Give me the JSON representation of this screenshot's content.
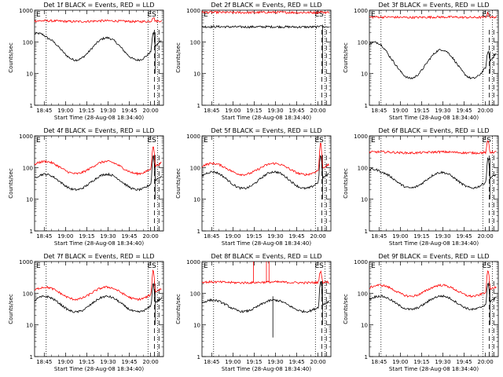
{
  "colors": {
    "events": "#000000",
    "lld": "#ff0000",
    "axis": "#000000",
    "background": "#ffffff"
  },
  "chart_data": [
    {
      "type": "line",
      "title": "Det 1f BLACK = Events, RED = LLD",
      "xlabel": "Start Time (28-Aug-08 18:34:40)",
      "ylabel": "Counts/sec",
      "ylog": true,
      "ylim": [
        1,
        1000
      ],
      "yticks": [
        "1",
        "10",
        "100",
        "1000"
      ],
      "xticks": [
        "18:45",
        "19:00",
        "19:15",
        "19:30",
        "19:45",
        "20:00"
      ],
      "annotations": [
        "E",
        "ES"
      ],
      "series": [
        {
          "name": "Events",
          "profile": "orbit_decreasing",
          "base_counts": 60,
          "amplitude": 1.0,
          "late_spike": 200
        },
        {
          "name": "LLD",
          "profile": "flat_high",
          "base_counts": 450,
          "amplitude": 0.15,
          "late_spike": 600
        }
      ]
    },
    {
      "type": "line",
      "title": "Det 2f BLACK = Events, RED = LLD",
      "xlabel": "Start Time (28-Aug-08 18:34:40)",
      "ylabel": "Counts/sec",
      "ylog": true,
      "ylim": [
        1,
        1000
      ],
      "yticks": [
        "1",
        "10",
        "100",
        "1000"
      ],
      "xticks": [
        "18:45",
        "19:00",
        "19:15",
        "19:30",
        "19:45",
        "20:00"
      ],
      "annotations": [
        "E",
        "ES"
      ],
      "series": [
        {
          "name": "Events",
          "profile": "flat_low",
          "base_counts": 300,
          "amplitude": 0.1,
          "late_spike": 350
        },
        {
          "name": "LLD",
          "profile": "flat_high",
          "base_counts": 850,
          "amplitude": 0.05,
          "late_spike": 900
        }
      ]
    },
    {
      "type": "line",
      "title": "Det 3f BLACK = Events, RED = LLD",
      "xlabel": "Start Time (28-Aug-08 18:34:40)",
      "ylabel": "Counts/sec",
      "ylog": true,
      "ylim": [
        1,
        1000
      ],
      "yticks": [
        "1",
        "10",
        "100",
        "1000"
      ],
      "xticks": [
        "18:45",
        "19:00",
        "19:15",
        "19:30",
        "19:45",
        "20:00"
      ],
      "annotations": [
        "E",
        "ES"
      ],
      "series": [
        {
          "name": "Events",
          "profile": "orbit_rising",
          "base_counts": 20,
          "amplitude": 1.0,
          "late_spike": 50
        },
        {
          "name": "LLD",
          "profile": "flat_high",
          "base_counts": 600,
          "amplitude": 0.08,
          "late_spike": 800
        }
      ]
    },
    {
      "type": "line",
      "title": "Det 4f BLACK = Events, RED = LLD",
      "xlabel": "Start Time (28-Aug-08 18:34:40)",
      "ylabel": "Counts/sec",
      "ylog": true,
      "ylim": [
        1,
        1000
      ],
      "yticks": [
        "1",
        "10",
        "100",
        "1000"
      ],
      "xticks": [
        "18:45",
        "19:00",
        "19:15",
        "19:30",
        "19:45",
        "20:00"
      ],
      "annotations": [
        "E",
        "ES"
      ],
      "series": [
        {
          "name": "Events",
          "profile": "orbit",
          "base_counts": 35,
          "amplitude": 0.7,
          "late_spike": 250
        },
        {
          "name": "LLD",
          "profile": "orbit",
          "base_counts": 100,
          "amplitude": 0.55,
          "late_spike": 500
        }
      ]
    },
    {
      "type": "line",
      "title": "Det 5f BLACK = Events, RED = LLD",
      "xlabel": "Start Time (28-Aug-08 18:34:40)",
      "ylabel": "Counts/sec",
      "ylog": true,
      "ylim": [
        1,
        1000
      ],
      "yticks": [
        "1",
        "10",
        "100",
        "1000"
      ],
      "xticks": [
        "18:45",
        "19:00",
        "19:15",
        "19:30",
        "19:45",
        "20:00"
      ],
      "annotations": [
        "E",
        "ES"
      ],
      "series": [
        {
          "name": "Events",
          "profile": "orbit",
          "base_counts": 40,
          "amplitude": 0.75,
          "late_spike": 250
        },
        {
          "name": "LLD",
          "profile": "orbit",
          "base_counts": 90,
          "amplitude": 0.5,
          "late_spike": 600
        }
      ]
    },
    {
      "type": "line",
      "title": "Det 6f BLACK = Events, RED = LLD",
      "xlabel": "Start Time (28-Aug-08 18:34:40)",
      "ylabel": "Counts/sec",
      "ylog": true,
      "ylim": [
        1,
        1000
      ],
      "yticks": [
        "1",
        "10",
        "100",
        "1000"
      ],
      "xticks": [
        "18:45",
        "19:00",
        "19:15",
        "19:30",
        "19:45",
        "20:00"
      ],
      "annotations": [
        "E",
        "ES"
      ],
      "series": [
        {
          "name": "Events",
          "profile": "orbit_decreasing",
          "base_counts": 40,
          "amplitude": 0.7,
          "late_spike": 200
        },
        {
          "name": "LLD",
          "profile": "flat_high",
          "base_counts": 300,
          "amplitude": 0.2,
          "late_spike": 700
        }
      ]
    },
    {
      "type": "line",
      "title": "Det 7f BLACK = Events, RED = LLD",
      "xlabel": "Start Time (28-Aug-08 18:34:40)",
      "ylabel": "Counts/sec",
      "ylog": true,
      "ylim": [
        1,
        1000
      ],
      "yticks": [
        "1",
        "10",
        "100",
        "1000"
      ],
      "xticks": [
        "18:45",
        "19:00",
        "19:15",
        "19:30",
        "19:45",
        "20:00"
      ],
      "annotations": [
        "E",
        "ES"
      ],
      "series": [
        {
          "name": "Events",
          "profile": "orbit",
          "base_counts": 45,
          "amplitude": 0.7,
          "late_spike": 200
        },
        {
          "name": "LLD",
          "profile": "orbit",
          "base_counts": 100,
          "amplitude": 0.55,
          "late_spike": 550
        }
      ]
    },
    {
      "type": "line",
      "title": "Det 8f BLACK = Events, RED = LLD",
      "xlabel": "Start Time (28-Aug-08 18:34:40)",
      "ylabel": "Counts/sec",
      "ylog": true,
      "ylim": [
        1,
        1000
      ],
      "yticks": [
        "1",
        "10",
        "100",
        "1000"
      ],
      "xticks": [
        "18:45",
        "19:00",
        "19:15",
        "19:30",
        "19:45",
        "20:00"
      ],
      "annotations": [
        "E",
        "ES"
      ],
      "series": [
        {
          "name": "Events",
          "profile": "orbit_gappy",
          "base_counts": 40,
          "amplitude": 0.6,
          "late_spike": 250
        },
        {
          "name": "LLD",
          "profile": "flat_spiky",
          "base_counts": 220,
          "amplitude": 0.25,
          "late_spike": 500
        }
      ]
    },
    {
      "type": "line",
      "title": "Det 9f BLACK = Events, RED = LLD",
      "xlabel": "Start Time (28-Aug-08 18:34:40)",
      "ylabel": "Counts/sec",
      "ylog": true,
      "ylim": [
        1,
        1000
      ],
      "yticks": [
        "1",
        "10",
        "100",
        "1000"
      ],
      "xticks": [
        "18:45",
        "19:00",
        "19:15",
        "19:30",
        "19:45",
        "20:00"
      ],
      "annotations": [
        "E",
        "ES"
      ],
      "series": [
        {
          "name": "Events",
          "profile": "orbit",
          "base_counts": 50,
          "amplitude": 0.6,
          "late_spike": 200
        },
        {
          "name": "LLD",
          "profile": "orbit",
          "base_counts": 120,
          "amplitude": 0.5,
          "late_spike": 550
        }
      ]
    }
  ]
}
